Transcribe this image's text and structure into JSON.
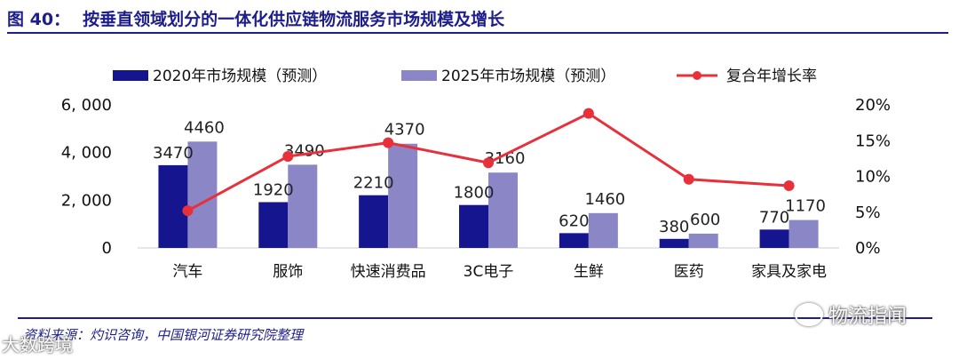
{
  "title": {
    "figure_label": "图 40：",
    "text": "按垂直领域划分的一体化供应链物流服务市场规模及增长"
  },
  "source": "资料来源：灼识咨询，中国银河证券研究院整理",
  "watermarks": {
    "right": "物流指闻",
    "left": "大数跨境"
  },
  "colors": {
    "series2020": "#15158f",
    "series2025": "#8b86c6",
    "growth": "#e8303a"
  },
  "chart_data": {
    "type": "bar",
    "title": "按垂直领域划分的一体化供应链物流服务市场规模及增长",
    "categories": [
      "汽车",
      "服饰",
      "快速消费品",
      "3C电子",
      "生鲜",
      "医药",
      "家具及家电"
    ],
    "series": [
      {
        "name": "2020年市场规模（预测）",
        "type": "bar",
        "axis": "left",
        "values": [
          3470,
          1920,
          2210,
          1800,
          620,
          380,
          770
        ]
      },
      {
        "name": "2025年市场规模（预测）",
        "type": "bar",
        "axis": "left",
        "values": [
          4460,
          3490,
          4370,
          3160,
          1460,
          600,
          1170
        ]
      },
      {
        "name": "复合年增长率",
        "type": "line",
        "axis": "right",
        "values": [
          5.2,
          12.8,
          14.7,
          11.9,
          18.8,
          9.6,
          8.7
        ]
      }
    ],
    "left_axis": {
      "ylim": [
        0,
        6000
      ],
      "ticks": [
        0,
        2000,
        4000,
        6000
      ],
      "tick_labels": [
        "0",
        "2, 000",
        "4, 000",
        "6, 000"
      ]
    },
    "right_axis": {
      "ylim": [
        0,
        20
      ],
      "ticks": [
        0,
        5,
        10,
        15,
        20
      ],
      "tick_labels": [
        "0%",
        "5%",
        "10%",
        "15%",
        "20%"
      ]
    },
    "data_labels": {
      "series2020": [
        "3470",
        "1920",
        "2210",
        "1800",
        "620",
        "380",
        "770"
      ],
      "series2025": [
        "4460",
        "3490",
        "4370",
        "3160",
        "1460",
        "600",
        "1170"
      ]
    },
    "legend_position": "top",
    "grid": false
  }
}
